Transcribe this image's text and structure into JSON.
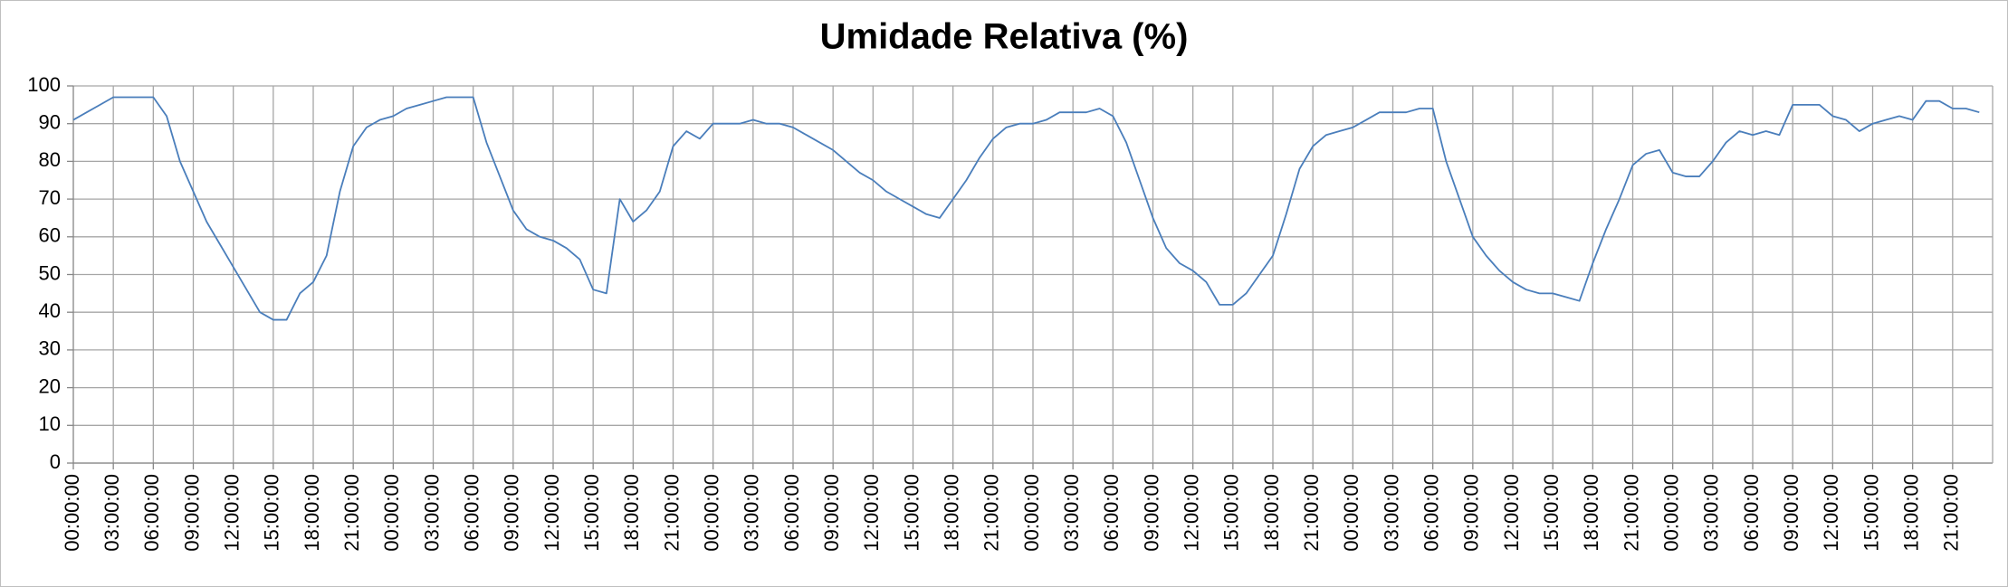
{
  "chart_data": {
    "type": "line",
    "title": "Umidade Relativa (%)",
    "categories": [
      "00:00:00",
      null,
      null,
      "03:00:00",
      null,
      null,
      "06:00:00",
      null,
      null,
      "09:00:00",
      null,
      null,
      "12:00:00",
      null,
      null,
      "15:00:00",
      null,
      null,
      "18:00:00",
      null,
      null,
      "21:00:00",
      null,
      null,
      "00:00:00",
      null,
      null,
      "03:00:00",
      null,
      null,
      "06:00:00",
      null,
      null,
      "09:00:00",
      null,
      null,
      "12:00:00",
      null,
      null,
      "15:00:00",
      null,
      null,
      "18:00:00",
      null,
      null,
      "21:00:00",
      null,
      null,
      "00:00:00",
      null,
      null,
      "03:00:00",
      null,
      null,
      "06:00:00",
      null,
      null,
      "09:00:00",
      null,
      null,
      "12:00:00",
      null,
      null,
      "15:00:00",
      null,
      null,
      "18:00:00",
      null,
      null,
      "21:00:00",
      null,
      null,
      "00:00:00",
      null,
      null,
      "03:00:00",
      null,
      null,
      "06:00:00",
      null,
      null,
      "09:00:00",
      null,
      null,
      "12:00:00",
      null,
      null,
      "15:00:00",
      null,
      null,
      "18:00:00",
      null,
      null,
      "21:00:00",
      null,
      null,
      "00:00:00",
      null,
      null,
      "03:00:00",
      null,
      null,
      "06:00:00",
      null,
      null,
      "09:00:00",
      null,
      null,
      "12:00:00",
      null,
      null,
      "15:00:00",
      null,
      null,
      "18:00:00",
      null,
      null,
      "21:00:00",
      null,
      null,
      "00:00:00",
      null,
      null,
      "03:00:00",
      null,
      null,
      "06:00:00",
      null,
      null,
      "09:00:00",
      null,
      null,
      "12:00:00",
      null,
      null,
      "15:00:00",
      null,
      null,
      "18:00:00",
      null,
      null,
      "21:00:00",
      null,
      null
    ],
    "values": [
      91,
      93,
      95,
      97,
      97,
      97,
      97,
      92,
      80,
      72,
      64,
      58,
      52,
      46,
      40,
      38,
      38,
      45,
      48,
      55,
      72,
      84,
      89,
      91,
      92,
      94,
      95,
      96,
      97,
      97,
      97,
      85,
      76,
      67,
      62,
      60,
      59,
      57,
      54,
      46,
      45,
      70,
      64,
      67,
      72,
      84,
      88,
      86,
      90,
      90,
      90,
      91,
      90,
      90,
      89,
      87,
      85,
      83,
      80,
      77,
      75,
      72,
      70,
      68,
      66,
      65,
      70,
      75,
      81,
      86,
      89,
      90,
      90,
      91,
      93,
      93,
      93,
      94,
      92,
      85,
      75,
      65,
      57,
      53,
      51,
      48,
      42,
      42,
      45,
      50,
      55,
      66,
      78,
      84,
      87,
      88,
      89,
      91,
      93,
      93,
      93,
      94,
      94,
      80,
      70,
      60,
      55,
      51,
      48,
      46,
      45,
      45,
      44,
      43,
      53,
      62,
      70,
      79,
      82,
      83,
      77,
      76,
      76,
      80,
      85,
      88,
      87,
      88,
      87,
      95,
      95,
      95,
      92,
      91,
      88,
      90,
      91,
      92,
      91,
      96,
      96,
      94,
      94,
      93
    ],
    "color": "#4a7ebb",
    "ylim": [
      0,
      100
    ],
    "yticks": [
      0,
      10,
      20,
      30,
      40,
      50,
      60,
      70,
      80,
      90,
      100
    ],
    "grid": true
  }
}
